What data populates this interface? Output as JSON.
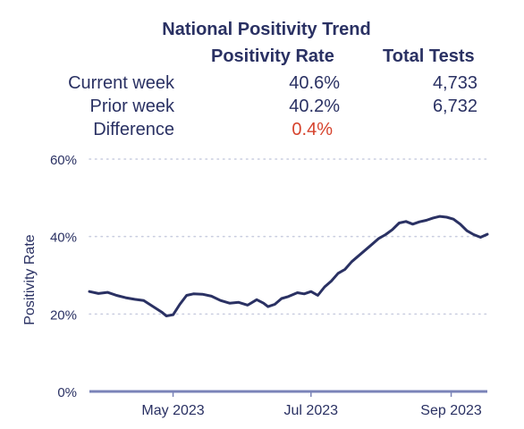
{
  "summary": {
    "title": "National Positivity Trend",
    "col_rate": "Positivity Rate",
    "col_tests": "Total Tests",
    "rows": [
      {
        "label": "Current week",
        "rate": "40.6%",
        "tests": "4,733"
      },
      {
        "label": "Prior week",
        "rate": "40.2%",
        "tests": "6,732"
      },
      {
        "label": "Difference",
        "rate": "0.4%",
        "tests": ""
      }
    ]
  },
  "chart_data": {
    "type": "line",
    "title": "",
    "xlabel": "",
    "ylabel": "Positivity Rate",
    "ylim": [
      0,
      60
    ],
    "yticks": [
      0,
      20,
      40,
      60
    ],
    "ytick_labels": [
      "0%",
      "20%",
      "40%",
      "60%"
    ],
    "xlim": [
      "2023-03-25",
      "2023-09-17"
    ],
    "xticks": [
      "2023-05-01",
      "2023-07-01",
      "2023-09-01"
    ],
    "xtick_labels": [
      "May 2023",
      "Jul 2023",
      "Sep 2023"
    ],
    "grid": "horizontal dotted",
    "colors": {
      "line": "#2a3163",
      "axis": "#7a83b8",
      "grid": "#c9cde0",
      "text": "#2a3163"
    },
    "series": [
      {
        "name": "",
        "x": [
          "2023-03-25",
          "2023-03-29",
          "2023-04-02",
          "2023-04-06",
          "2023-04-10",
          "2023-04-14",
          "2023-04-18",
          "2023-04-22",
          "2023-04-26",
          "2023-04-28",
          "2023-05-01",
          "2023-05-04",
          "2023-05-07",
          "2023-05-10",
          "2023-05-14",
          "2023-05-18",
          "2023-05-22",
          "2023-05-26",
          "2023-05-30",
          "2023-06-03",
          "2023-06-07",
          "2023-06-10",
          "2023-06-12",
          "2023-06-15",
          "2023-06-18",
          "2023-06-21",
          "2023-06-25",
          "2023-06-28",
          "2023-07-01",
          "2023-07-04",
          "2023-07-07",
          "2023-07-10",
          "2023-07-13",
          "2023-07-16",
          "2023-07-19",
          "2023-07-22",
          "2023-07-25",
          "2023-07-28",
          "2023-07-31",
          "2023-08-03",
          "2023-08-06",
          "2023-08-09",
          "2023-08-12",
          "2023-08-15",
          "2023-08-18",
          "2023-08-21",
          "2023-08-24",
          "2023-08-27",
          "2023-08-30",
          "2023-09-02",
          "2023-09-05",
          "2023-09-08",
          "2023-09-11",
          "2023-09-14",
          "2023-09-17"
        ],
        "y": [
          25.8,
          25.3,
          25.6,
          24.8,
          24.2,
          23.8,
          23.5,
          22.0,
          20.5,
          19.5,
          19.8,
          22.5,
          24.8,
          25.2,
          25.1,
          24.6,
          23.5,
          22.8,
          23.0,
          22.3,
          23.7,
          22.8,
          21.9,
          22.5,
          24.0,
          24.5,
          25.5,
          25.2,
          25.8,
          24.8,
          27.0,
          28.5,
          30.5,
          31.5,
          33.5,
          35.0,
          36.5,
          38.0,
          39.5,
          40.5,
          41.8,
          43.5,
          43.9,
          43.2,
          43.8,
          44.2,
          44.8,
          45.2,
          45.0,
          44.5,
          43.2,
          41.5,
          40.5,
          39.8,
          40.6
        ]
      }
    ]
  }
}
